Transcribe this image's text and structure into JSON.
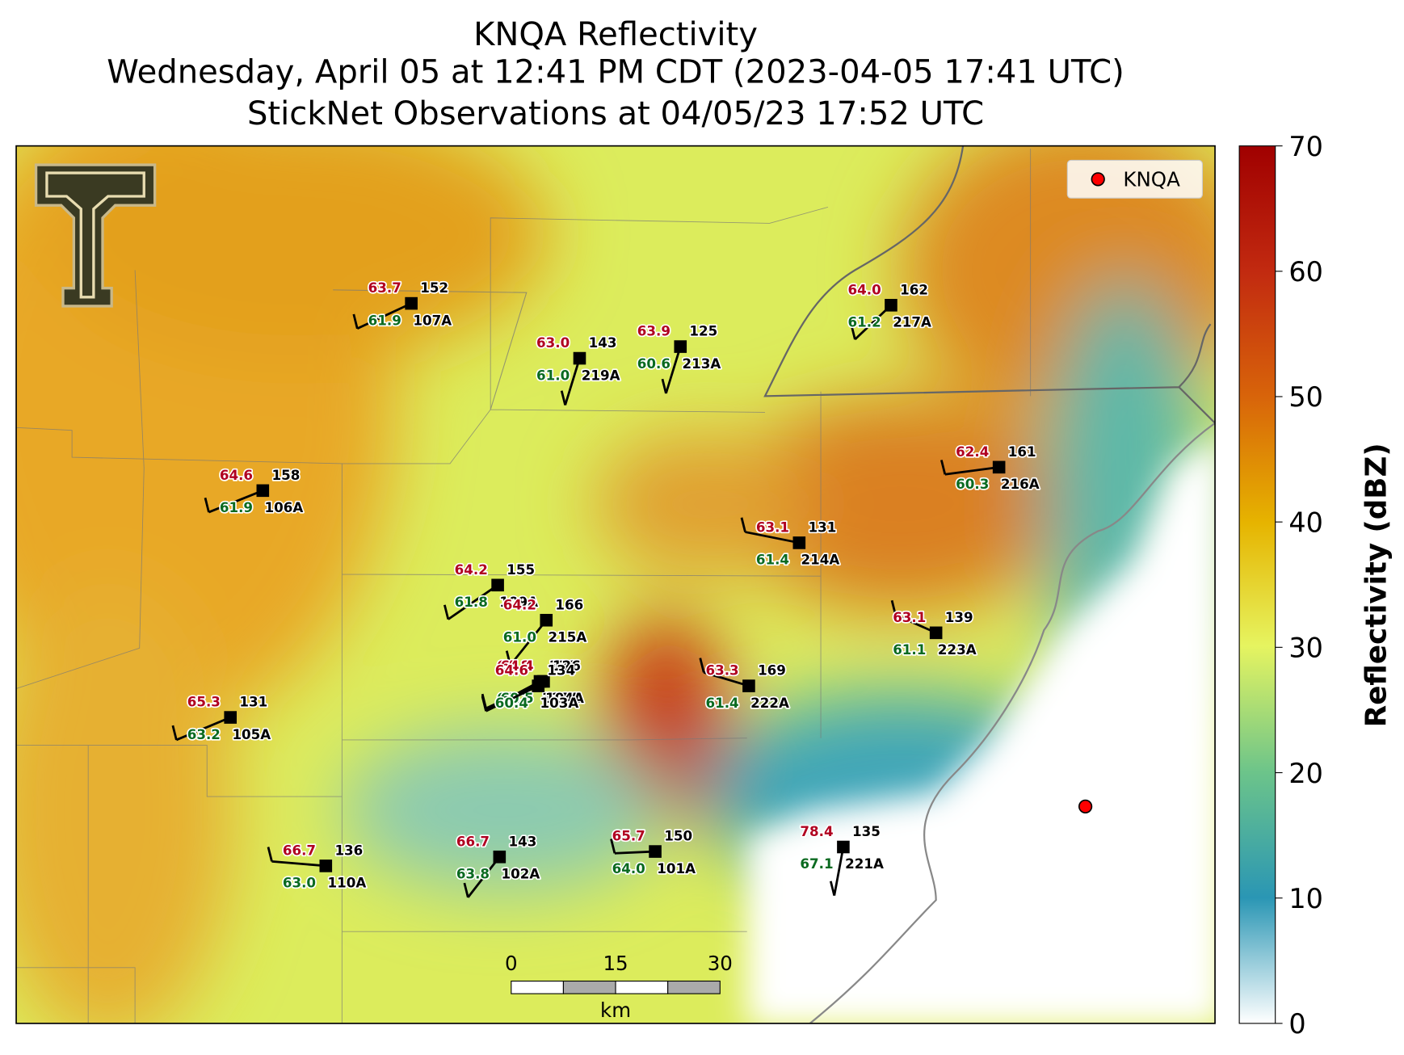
{
  "title_lines": [
    "KNQA Reflectivity",
    "Wednesday, April 05 at 12:41 PM CDT (2023-04-05 17:41 UTC)",
    "StickNet Observations at 04/05/23 17:52 UTC"
  ],
  "map": {
    "stations": [
      {
        "id": "107A",
        "temperature": "63.7",
        "dewpoint": "61.9",
        "pressure": "152"
      },
      {
        "id": "219A",
        "temperature": "63.0",
        "dewpoint": "61.0",
        "pressure": "143"
      },
      {
        "id": "213A",
        "temperature": "63.9",
        "dewpoint": "60.6",
        "pressure": "125"
      },
      {
        "id": "217A",
        "temperature": "64.0",
        "dewpoint": "61.2",
        "pressure": "162"
      },
      {
        "id": "216A",
        "temperature": "62.4",
        "dewpoint": "60.3",
        "pressure": "161"
      },
      {
        "id": "106A",
        "temperature": "64.6",
        "dewpoint": "61.9",
        "pressure": "158"
      },
      {
        "id": "214A",
        "temperature": "63.1",
        "dewpoint": "61.4",
        "pressure": "131"
      },
      {
        "id": "109A",
        "temperature": "64.2",
        "dewpoint": "61.8",
        "pressure": "155"
      },
      {
        "id": "215A",
        "temperature": "64.2",
        "dewpoint": "61.0",
        "pressure": "166"
      },
      {
        "id": "223A",
        "temperature": "63.1",
        "dewpoint": "61.1",
        "pressure": "139"
      },
      {
        "id": "222A",
        "temperature": "63.3",
        "dewpoint": "61.4",
        "pressure": "169"
      },
      {
        "id": "111A",
        "temperature": "64.8",
        "dewpoint": "60.7",
        "pressure": "138"
      },
      {
        "id": "104A",
        "temperature": "64.4",
        "dewpoint": "60.5",
        "pressure": "126"
      },
      {
        "id": "103A",
        "temperature": "64.6",
        "dewpoint": "60.4",
        "pressure": "134"
      },
      {
        "id": "105A",
        "temperature": "65.3",
        "dewpoint": "63.2",
        "pressure": "131"
      },
      {
        "id": "110A",
        "temperature": "66.7",
        "dewpoint": "63.0",
        "pressure": "136"
      },
      {
        "id": "102A",
        "temperature": "66.7",
        "dewpoint": "63.8",
        "pressure": "143"
      },
      {
        "id": "101A",
        "temperature": "65.7",
        "dewpoint": "64.0",
        "pressure": "150"
      },
      {
        "id": "221A",
        "temperature": "78.4",
        "dewpoint": "67.1",
        "pressure": "135"
      }
    ],
    "radar_site": {
      "label": "KNQA"
    },
    "scale_bar": {
      "ticks": [
        "0",
        "15",
        "30"
      ],
      "unit": "km"
    }
  },
  "colorbar": {
    "label": "Reflectivity (dBZ)",
    "ylim": [
      0,
      70
    ],
    "yticks": [
      0,
      10,
      20,
      30,
      40,
      50,
      60,
      70
    ]
  }
}
